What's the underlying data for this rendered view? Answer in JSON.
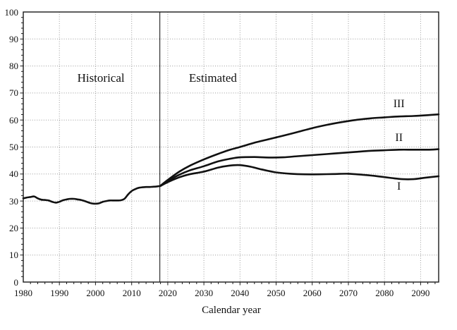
{
  "figure": {
    "background": "#ffffff",
    "text_color": "#111111",
    "line_color": "#111111",
    "grid_color": "#9a9a9a",
    "axis_color": "#1a1a1a"
  },
  "chart_data": {
    "type": "line",
    "title": "",
    "xlabel": "Calendar year",
    "ylabel": "",
    "xlim": [
      1980,
      2095
    ],
    "ylim": [
      0,
      100
    ],
    "grid": "dotted",
    "legend_position": "none",
    "x_ticks": [
      1980,
      1990,
      2000,
      2010,
      2020,
      2030,
      2040,
      2050,
      2060,
      2070,
      2080,
      2090
    ],
    "x_tick_labels": [
      "1980",
      "1990",
      "2000",
      "2010",
      "2020",
      "2030",
      "2040",
      "2050",
      "2060",
      "2070",
      "2080",
      "2090"
    ],
    "y_ticks": [
      0,
      10,
      20,
      30,
      40,
      50,
      60,
      70,
      80,
      90,
      100
    ],
    "y_tick_labels": [
      "0",
      "10",
      "20",
      "30",
      "40",
      "50",
      "60",
      "70",
      "80",
      "90",
      "100"
    ],
    "x_minor_tick_step": 2,
    "y_minor_tick_step": 2,
    "divider": {
      "x": 2017.8,
      "style": "solid"
    },
    "region_labels": [
      {
        "text": "Historical",
        "x": 2001.5,
        "y": 75.5
      },
      {
        "text": "Estimated",
        "x": 2032.5,
        "y": 75.5
      }
    ],
    "series_labels": [
      {
        "text": "III",
        "x": 2084,
        "y": 66
      },
      {
        "text": "II",
        "x": 2084,
        "y": 53.5
      },
      {
        "text": "I",
        "x": 2084,
        "y": 35.5
      }
    ],
    "series": [
      {
        "name": "Historical",
        "points": [
          [
            1980,
            31.0
          ],
          [
            1981,
            31.3
          ],
          [
            1982,
            31.5
          ],
          [
            1983,
            31.7
          ],
          [
            1984,
            31.0
          ],
          [
            1985,
            30.5
          ],
          [
            1986,
            30.4
          ],
          [
            1987,
            30.2
          ],
          [
            1988,
            29.7
          ],
          [
            1989,
            29.4
          ],
          [
            1990,
            29.7
          ],
          [
            1991,
            30.3
          ],
          [
            1992,
            30.6
          ],
          [
            1993,
            30.8
          ],
          [
            1994,
            30.8
          ],
          [
            1995,
            30.6
          ],
          [
            1996,
            30.4
          ],
          [
            1997,
            30.0
          ],
          [
            1998,
            29.5
          ],
          [
            1999,
            29.1
          ],
          [
            2000,
            29.0
          ],
          [
            2001,
            29.2
          ],
          [
            2002,
            29.7
          ],
          [
            2003,
            30.0
          ],
          [
            2004,
            30.2
          ],
          [
            2005,
            30.2
          ],
          [
            2006,
            30.2
          ],
          [
            2007,
            30.3
          ],
          [
            2008,
            30.8
          ],
          [
            2009,
            32.4
          ],
          [
            2010,
            33.7
          ],
          [
            2011,
            34.4
          ],
          [
            2012,
            34.9
          ],
          [
            2013,
            35.1
          ],
          [
            2014,
            35.2
          ],
          [
            2015,
            35.2
          ],
          [
            2016,
            35.3
          ],
          [
            2017,
            35.4
          ],
          [
            2018,
            35.6
          ]
        ]
      },
      {
        "name": "Alternative I",
        "points": [
          [
            2018,
            35.6
          ],
          [
            2020,
            37.0
          ],
          [
            2023,
            38.7
          ],
          [
            2026,
            39.9
          ],
          [
            2030,
            40.9
          ],
          [
            2034,
            42.4
          ],
          [
            2037,
            43.1
          ],
          [
            2040,
            43.3
          ],
          [
            2043,
            42.7
          ],
          [
            2046,
            41.7
          ],
          [
            2050,
            40.6
          ],
          [
            2054,
            40.1
          ],
          [
            2058,
            39.9
          ],
          [
            2062,
            39.9
          ],
          [
            2066,
            40.0
          ],
          [
            2070,
            40.1
          ],
          [
            2074,
            39.7
          ],
          [
            2078,
            39.2
          ],
          [
            2082,
            38.5
          ],
          [
            2085,
            38.1
          ],
          [
            2088,
            38.1
          ],
          [
            2091,
            38.6
          ],
          [
            2095,
            39.2
          ]
        ]
      },
      {
        "name": "Alternative II",
        "points": [
          [
            2018,
            35.6
          ],
          [
            2020,
            37.4
          ],
          [
            2023,
            39.6
          ],
          [
            2026,
            41.3
          ],
          [
            2030,
            42.9
          ],
          [
            2034,
            44.7
          ],
          [
            2037,
            45.6
          ],
          [
            2040,
            46.2
          ],
          [
            2044,
            46.3
          ],
          [
            2048,
            46.1
          ],
          [
            2052,
            46.2
          ],
          [
            2056,
            46.6
          ],
          [
            2060,
            47.0
          ],
          [
            2064,
            47.4
          ],
          [
            2068,
            47.8
          ],
          [
            2072,
            48.2
          ],
          [
            2076,
            48.6
          ],
          [
            2080,
            48.8
          ],
          [
            2084,
            49.0
          ],
          [
            2088,
            49.0
          ],
          [
            2092,
            49.0
          ],
          [
            2095,
            49.2
          ]
        ]
      },
      {
        "name": "Alternative III",
        "points": [
          [
            2018,
            35.7
          ],
          [
            2020,
            37.8
          ],
          [
            2023,
            40.7
          ],
          [
            2026,
            43.0
          ],
          [
            2030,
            45.4
          ],
          [
            2034,
            47.5
          ],
          [
            2037,
            48.9
          ],
          [
            2040,
            50.0
          ],
          [
            2044,
            51.6
          ],
          [
            2048,
            52.9
          ],
          [
            2052,
            54.2
          ],
          [
            2056,
            55.6
          ],
          [
            2060,
            57.0
          ],
          [
            2064,
            58.2
          ],
          [
            2068,
            59.2
          ],
          [
            2072,
            60.0
          ],
          [
            2076,
            60.6
          ],
          [
            2080,
            61.0
          ],
          [
            2084,
            61.3
          ],
          [
            2088,
            61.5
          ],
          [
            2092,
            61.8
          ],
          [
            2095,
            62.1
          ]
        ]
      }
    ]
  }
}
